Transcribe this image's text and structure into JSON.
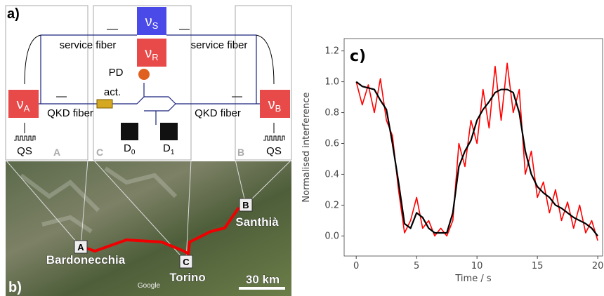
{
  "panel_a": {
    "label": "a)",
    "nu": "ν",
    "subs": {
      "S": "S",
      "R": "R",
      "A": "A",
      "B": "B"
    },
    "service_fiber": [
      "service fiber",
      "service fiber"
    ],
    "qkd_fiber": [
      "QKD fiber",
      "QKD fiber"
    ],
    "pd": "PD",
    "act": "act.",
    "detector": "D",
    "d_subs": [
      "0",
      "1"
    ],
    "qs": [
      "QS",
      "QS"
    ],
    "sites": {
      "A": "A",
      "C": "C",
      "B": "B"
    }
  },
  "panel_b": {
    "label": "b)",
    "places": {
      "A": "A",
      "B": "B",
      "C": "C",
      "bardonecchia": "Bardonecchia",
      "torino": "Torino",
      "santhia": "Santhià"
    },
    "scale": "30 km",
    "credit": "Google"
  },
  "chart_data": {
    "type": "line",
    "panel_label": "c)",
    "xlabel": "Time / s",
    "ylabel": "Normalised interference",
    "x": [
      0,
      0.5,
      1,
      1.5,
      2,
      2.5,
      3,
      3.5,
      4,
      4.5,
      5,
      5.5,
      6,
      6.5,
      7,
      7.5,
      8,
      8.5,
      9,
      9.5,
      10,
      10.5,
      11,
      11.5,
      12,
      12.5,
      13,
      13.5,
      14,
      14.5,
      15,
      15.5,
      16,
      16.5,
      17,
      17.5,
      18,
      18.5,
      19,
      19.5,
      20
    ],
    "series": [
      {
        "color": "#ff0000",
        "values": [
          1.0,
          0.85,
          0.98,
          0.8,
          1.02,
          0.75,
          0.65,
          0.3,
          0.02,
          0.1,
          0.25,
          0.05,
          0.1,
          0.0,
          0.05,
          0.0,
          0.1,
          0.6,
          0.45,
          0.75,
          0.6,
          0.95,
          0.7,
          1.1,
          0.75,
          1.12,
          0.8,
          0.95,
          0.4,
          0.55,
          0.25,
          0.35,
          0.15,
          0.3,
          0.1,
          0.22,
          0.05,
          0.2,
          0.02,
          0.1,
          -0.03
        ]
      },
      {
        "color": "#000000",
        "values": [
          1.0,
          0.97,
          0.96,
          0.95,
          0.88,
          0.82,
          0.6,
          0.35,
          0.08,
          0.05,
          0.15,
          0.12,
          0.05,
          0.02,
          0.02,
          0.02,
          0.15,
          0.45,
          0.55,
          0.62,
          0.75,
          0.82,
          0.87,
          0.93,
          0.95,
          0.95,
          0.93,
          0.8,
          0.55,
          0.4,
          0.32,
          0.28,
          0.25,
          0.2,
          0.18,
          0.15,
          0.12,
          0.1,
          0.08,
          0.05,
          0.0
        ]
      }
    ],
    "xlim": [
      -1,
      20.4
    ],
    "ylim": [
      -0.13,
      1.28
    ],
    "xticks": [
      0,
      5,
      10,
      15,
      20
    ],
    "yticks": [
      {
        "value": 0,
        "label": "0.0"
      },
      {
        "value": 0.2,
        "label": "0.2"
      },
      {
        "value": 0.4,
        "label": "0.4"
      },
      {
        "value": 0.6,
        "label": "0.6"
      },
      {
        "value": 0.8,
        "label": "0.8"
      },
      {
        "value": 1,
        "label": "1.0"
      },
      {
        "value": 1.2,
        "label": "1.2"
      }
    ]
  }
}
